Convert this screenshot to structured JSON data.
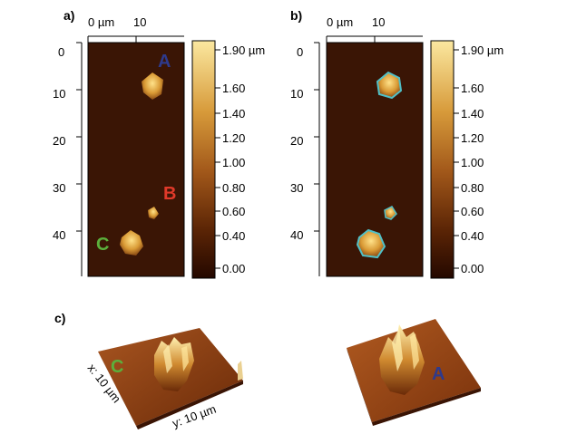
{
  "panels": {
    "a": {
      "label": "a)",
      "x_ticks": [
        "0 µm",
        "10"
      ],
      "y_ticks": [
        "0",
        "10",
        "20",
        "30",
        "40"
      ],
      "markers": [
        {
          "text": "A",
          "color": "#2e3a8c"
        },
        {
          "text": "B",
          "color": "#e03a2a"
        },
        {
          "text": "C",
          "color": "#5bb03c"
        }
      ]
    },
    "b": {
      "label": "b)",
      "x_ticks": [
        "0 µm",
        "10"
      ],
      "y_ticks": [
        "0",
        "10",
        "20",
        "30",
        "40"
      ]
    },
    "c": {
      "label": "c)",
      "left_marker": {
        "text": "C",
        "color": "#5bb03c"
      },
      "right_marker": {
        "text": "A",
        "color": "#2e3a8c"
      },
      "x_axis_label": "x: 10 µm",
      "y_axis_label": "y: 10 µm"
    }
  },
  "colorbar": {
    "labels": [
      "1.90 µm",
      "1.60",
      "1.40",
      "1.20",
      "1.00",
      "0.80",
      "0.60",
      "0.40",
      "0.00"
    ]
  },
  "colors": {
    "background_dark": "#3a1505",
    "surface_brown": "#8a3c10",
    "feature_gold": "#e8b648"
  }
}
